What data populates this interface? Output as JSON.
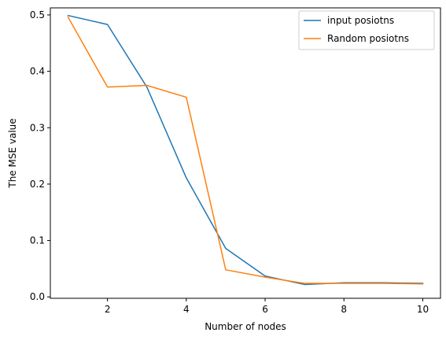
{
  "chart_data": {
    "type": "line",
    "title": "",
    "xlabel": "Number of nodes",
    "ylabel": "The MSE value",
    "xlim": [
      0.55,
      10.45
    ],
    "ylim": [
      -0.0025,
      0.5125
    ],
    "xticks": [
      2,
      4,
      6,
      8,
      10
    ],
    "yticks": [
      0.0,
      0.1,
      0.2,
      0.3,
      0.4,
      0.5
    ],
    "xtick_labels": [
      "2",
      "4",
      "6",
      "8",
      "10"
    ],
    "ytick_labels": [
      "0.0",
      "0.1",
      "0.2",
      "0.3",
      "0.4",
      "0.5"
    ],
    "grid": false,
    "legend_position": "top-right",
    "x": [
      1,
      2,
      3,
      4,
      5,
      6,
      7,
      8,
      9,
      10
    ],
    "series": [
      {
        "name": "input posiotns",
        "color": "#1f77b4",
        "values": [
          0.499,
          0.483,
          0.372,
          0.211,
          0.086,
          0.037,
          0.022,
          0.025,
          0.025,
          0.024
        ]
      },
      {
        "name": "Random posiotns",
        "color": "#ff7f0e",
        "values": [
          0.496,
          0.372,
          0.375,
          0.354,
          0.048,
          0.035,
          0.024,
          0.024,
          0.024,
          0.023
        ]
      }
    ]
  }
}
